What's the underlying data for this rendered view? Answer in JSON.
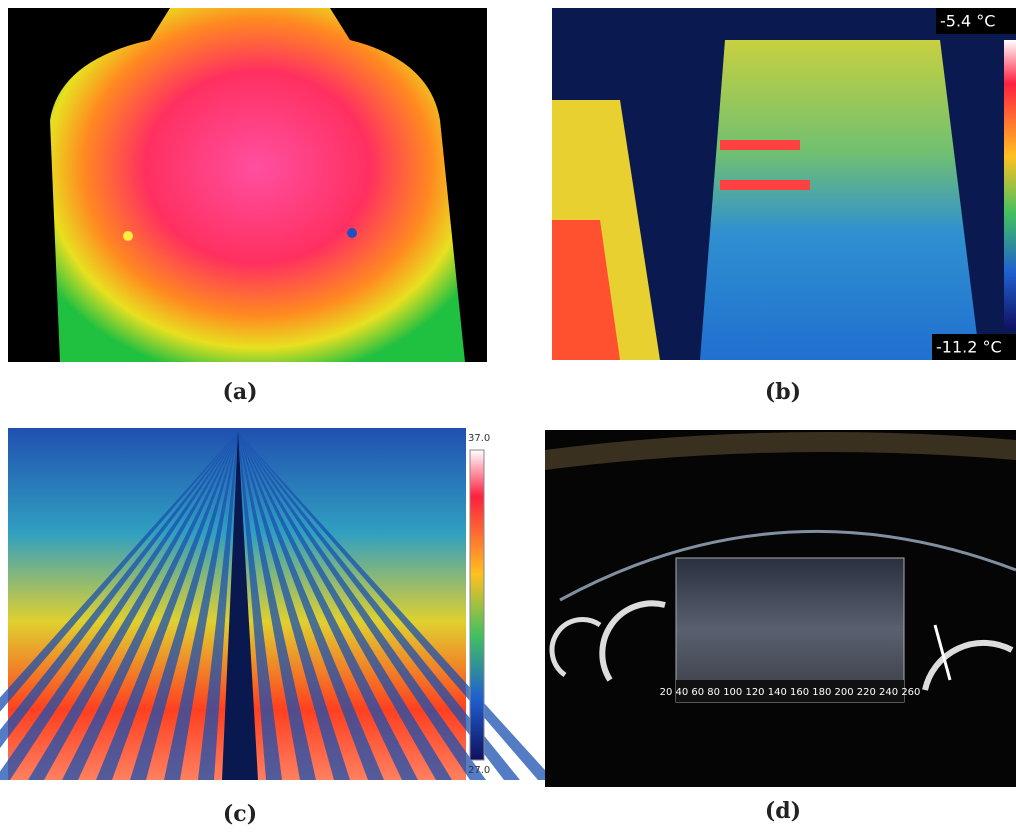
{
  "panels": [
    {
      "caption": "(a)"
    },
    {
      "caption": "(b)",
      "scale_max": "-5.4 °C",
      "scale_min": "-11.2 °C"
    },
    {
      "caption": "(c)",
      "scale_max": "37.0",
      "scale_min": "27.0"
    },
    {
      "caption": "(d)",
      "speed_scale": "20 40 60 80 100 120 140 160 180 200 220 240 260"
    }
  ]
}
